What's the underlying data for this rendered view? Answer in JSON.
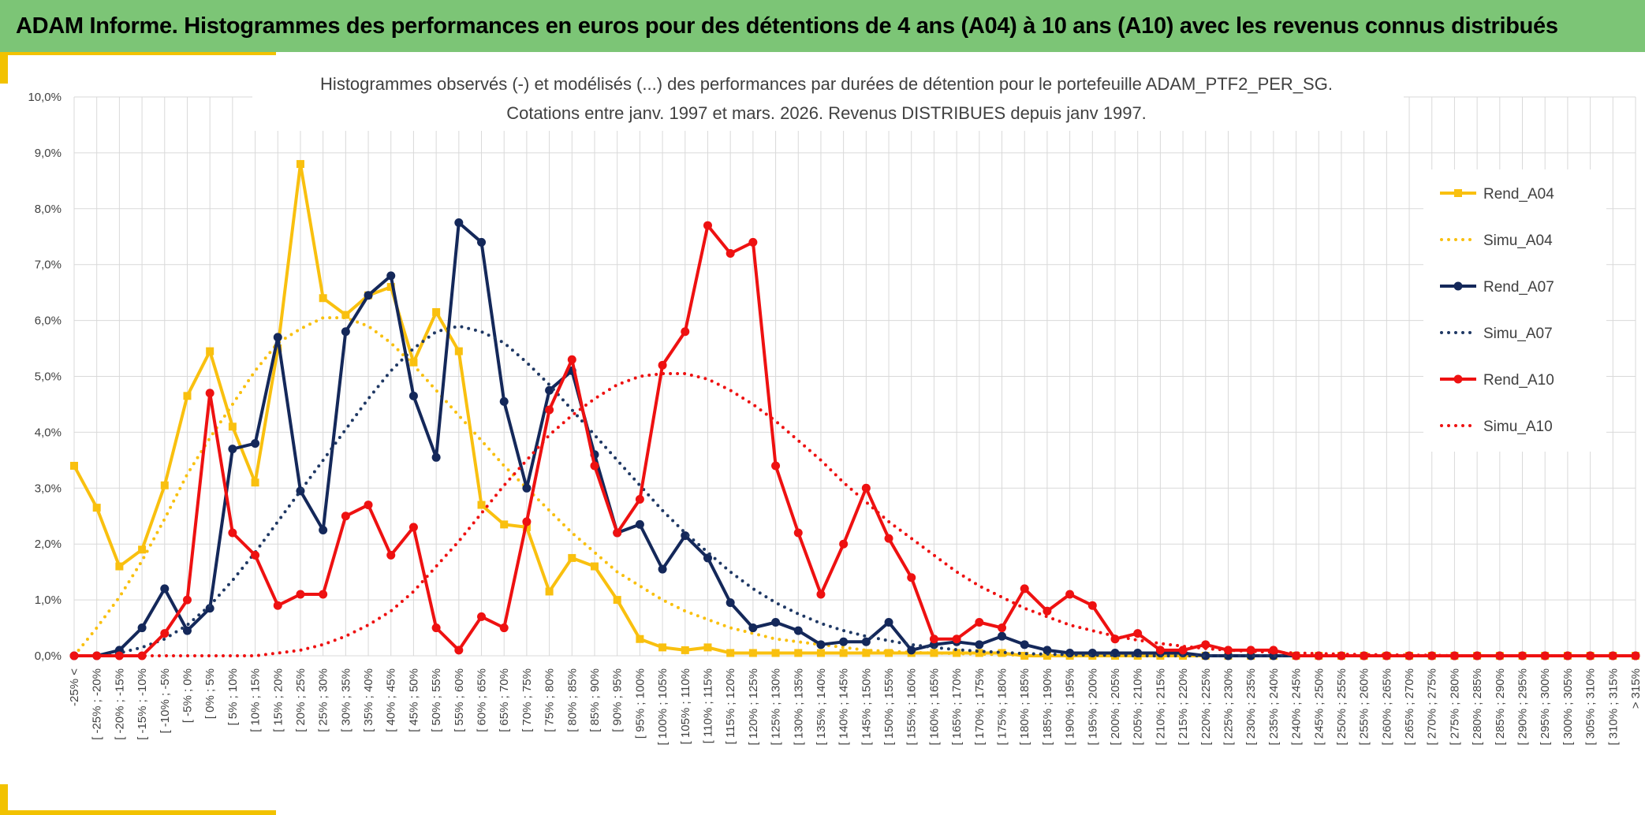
{
  "banner": {
    "title": "ADAM Informe. Histogrammes des performances en euros pour des détentions de 4 ans (A04) à 10 ans (A10) avec les revenus connus distribués"
  },
  "colors": {
    "banner_bg": "#7cc576",
    "accent": "#f2c200",
    "a04": "#f9c00f",
    "a07": "#14285a",
    "a10": "#ee1111",
    "grid": "#d9d9d9"
  },
  "chart_data": {
    "type": "line",
    "title": "Histogrammes observés (-) et modélisés (...) des performances par durées de détention pour le portefeuille ADAM_PTF2_PER_SG.",
    "subtitle": "Cotations entre janv. 1997 et mars. 2026. Revenus DISTRIBUES depuis janv 1997.",
    "xlabel": "",
    "ylabel": "",
    "ylim": [
      0,
      10
    ],
    "yticks": [
      "0,0%",
      "1,0%",
      "2,0%",
      "3,0%",
      "4,0%",
      "5,0%",
      "6,0%",
      "7,0%",
      "8,0%",
      "9,0%",
      "10,0%"
    ],
    "grid": true,
    "legend_position": "right",
    "categories": [
      "-25% <",
      "[ -25% ; -20%",
      "[ -20% ; -15%",
      "[ -15% ; -10%",
      "[ -10% ; -5%",
      "[ -5% ; 0%",
      "[ 0% ; 5%",
      "[ 5% ; 10%",
      "[ 10% ; 15%",
      "[ 15% ; 20%",
      "[ 20% ; 25%",
      "[ 25% ; 30%",
      "[ 30% ; 35%",
      "[ 35% ; 40%",
      "[ 40% ; 45%",
      "[ 45% ; 50%",
      "[ 50% ; 55%",
      "[ 55% ; 60%",
      "[ 60% ; 65%",
      "[ 65% ; 70%",
      "[ 70% ; 75%",
      "[ 75% ; 80%",
      "[ 80% ; 85%",
      "[ 85% ; 90%",
      "[ 90% ; 95%",
      "[ 95% ; 100%",
      "[ 100% ; 105%",
      "[ 105% ; 110%",
      "[ 110% ; 115%",
      "[ 115% ; 120%",
      "[ 120% ; 125%",
      "[ 125% ; 130%",
      "[ 130% ; 135%",
      "[ 135% ; 140%",
      "[ 140% ; 145%",
      "[ 145% ; 150%",
      "[ 150% ; 155%",
      "[ 155% ; 160%",
      "[ 160% ; 165%",
      "[ 165% ; 170%",
      "[ 170% ; 175%",
      "[ 175% ; 180%",
      "[ 180% ; 185%",
      "[ 185% ; 190%",
      "[ 190% ; 195%",
      "[ 195% ; 200%",
      "[ 200% ; 205%",
      "[ 205% ; 210%",
      "[ 210% ; 215%",
      "[ 215% ; 220%",
      "[ 220% ; 225%",
      "[ 225% ; 230%",
      "[ 230% ; 235%",
      "[ 235% ; 240%",
      "[ 240% ; 245%",
      "[ 245% ; 250%",
      "[ 250% ; 255%",
      "[ 255% ; 260%",
      "[ 260% ; 265%",
      "[ 265% ; 270%",
      "[ 270% ; 275%",
      "[ 275% ; 280%",
      "[ 280% ; 285%",
      "[ 285% ; 290%",
      "[ 290% ; 295%",
      "[ 295% ; 300%",
      "[ 300% ; 305%",
      "[ 305% ; 310%",
      "[ 310% ; 315%",
      "> 315%"
    ],
    "series": [
      {
        "name": "Rend_A04",
        "style": "solid",
        "marker": "square",
        "color": "#f9c00f",
        "values": [
          3.4,
          2.65,
          1.6,
          1.9,
          3.05,
          4.65,
          5.45,
          4.1,
          3.1,
          5.5,
          8.8,
          6.4,
          6.1,
          6.45,
          6.6,
          5.25,
          6.15,
          5.45,
          2.7,
          2.35,
          2.3,
          1.15,
          1.75,
          1.6,
          1.0,
          0.3,
          0.15,
          0.1,
          0.15,
          0.05,
          0.05,
          0.05,
          0.05,
          0.05,
          0.05,
          0.05,
          0.05,
          0.05,
          0.05,
          0.05,
          0.05,
          0.05,
          0.0,
          0.0,
          0.0,
          0.0,
          0.0,
          0.0,
          0.0,
          0.0,
          0.0,
          0.0,
          0.0,
          0.0,
          0.0,
          0.0,
          0.0,
          0.0,
          0.0,
          0.0,
          0.0,
          0.0,
          0.0,
          0.0,
          0.0,
          0.0,
          0.0,
          0.0,
          0.0,
          0.0
        ]
      },
      {
        "name": "Simu_A04",
        "style": "dotted",
        "marker": "none",
        "color": "#f9c00f",
        "values": [
          0.0,
          0.5,
          1.05,
          1.7,
          2.45,
          3.25,
          3.9,
          4.5,
          5.1,
          5.6,
          5.85,
          6.05,
          6.05,
          5.9,
          5.6,
          5.2,
          4.75,
          4.3,
          3.85,
          3.4,
          3.0,
          2.6,
          2.2,
          1.85,
          1.5,
          1.25,
          1.0,
          0.8,
          0.65,
          0.5,
          0.4,
          0.3,
          0.25,
          0.2,
          0.15,
          0.1,
          0.08,
          0.06,
          0.05,
          0.04,
          0.03,
          0.02,
          0.01,
          0.01,
          0.0,
          0.0,
          0.0,
          0.0,
          0.0,
          0.0,
          0.0,
          0.0,
          0.0,
          0.0,
          0.0,
          0.0,
          0.0,
          0.0,
          0.0,
          0.0,
          0.0,
          0.0,
          0.0,
          0.0,
          0.0,
          0.0,
          0.0,
          0.0,
          0.0,
          0.0
        ]
      },
      {
        "name": "Rend_A07",
        "style": "solid",
        "marker": "circle",
        "color": "#14285a",
        "values": [
          0.0,
          0.0,
          0.1,
          0.5,
          1.2,
          0.45,
          0.85,
          3.7,
          3.8,
          5.7,
          2.95,
          2.25,
          5.8,
          6.45,
          6.8,
          4.65,
          3.55,
          7.75,
          7.4,
          4.55,
          3.0,
          4.75,
          5.1,
          3.6,
          2.2,
          2.35,
          1.55,
          2.15,
          1.75,
          0.95,
          0.5,
          0.6,
          0.45,
          0.2,
          0.25,
          0.25,
          0.6,
          0.1,
          0.2,
          0.25,
          0.2,
          0.35,
          0.2,
          0.1,
          0.05,
          0.05,
          0.05,
          0.05,
          0.05,
          0.05,
          0.0,
          0.0,
          0.0,
          0.0,
          0.0,
          0.0,
          0.0,
          0.0,
          0.0,
          0.0,
          0.0,
          0.0,
          0.0,
          0.0,
          0.0,
          0.0,
          0.0,
          0.0,
          0.0,
          0.0
        ]
      },
      {
        "name": "Simu_A07",
        "style": "dotted",
        "marker": "none",
        "color": "#1f3864",
        "values": [
          0.0,
          0.0,
          0.05,
          0.15,
          0.3,
          0.55,
          0.9,
          1.35,
          1.85,
          2.4,
          2.95,
          3.5,
          4.05,
          4.6,
          5.1,
          5.5,
          5.8,
          5.9,
          5.8,
          5.6,
          5.25,
          4.85,
          4.4,
          3.95,
          3.5,
          3.05,
          2.6,
          2.2,
          1.85,
          1.5,
          1.2,
          0.95,
          0.75,
          0.58,
          0.45,
          0.35,
          0.27,
          0.2,
          0.15,
          0.11,
          0.08,
          0.06,
          0.04,
          0.03,
          0.02,
          0.01,
          0.01,
          0.0,
          0.0,
          0.0,
          0.0,
          0.0,
          0.0,
          0.0,
          0.0,
          0.0,
          0.0,
          0.0,
          0.0,
          0.0,
          0.0,
          0.0,
          0.0,
          0.0,
          0.0,
          0.0,
          0.0,
          0.0,
          0.0,
          0.0
        ]
      },
      {
        "name": "Rend_A10",
        "style": "solid",
        "marker": "circle",
        "color": "#ee1111",
        "values": [
          0.0,
          0.0,
          0.0,
          0.0,
          0.4,
          1.0,
          4.7,
          2.2,
          1.8,
          0.9,
          1.1,
          1.1,
          2.5,
          2.7,
          1.8,
          2.3,
          0.5,
          0.1,
          0.7,
          0.5,
          2.4,
          4.4,
          5.3,
          3.4,
          2.2,
          2.8,
          5.2,
          5.8,
          7.7,
          7.2,
          7.4,
          3.4,
          2.2,
          1.1,
          2.0,
          3.0,
          2.1,
          1.4,
          0.3,
          0.3,
          0.6,
          0.5,
          1.2,
          0.8,
          1.1,
          0.9,
          0.3,
          0.4,
          0.1,
          0.1,
          0.2,
          0.1,
          0.1,
          0.1,
          0.0,
          0.0,
          0.0,
          0.0,
          0.0,
          0.0,
          0.0,
          0.0,
          0.0,
          0.0,
          0.0,
          0.0,
          0.0,
          0.0,
          0.0,
          0.0
        ]
      },
      {
        "name": "Simu_A10",
        "style": "dotted",
        "marker": "none",
        "color": "#ee1111",
        "values": [
          0.0,
          0.0,
          0.0,
          0.0,
          0.0,
          0.0,
          0.0,
          0.0,
          0.0,
          0.05,
          0.1,
          0.2,
          0.35,
          0.55,
          0.8,
          1.15,
          1.6,
          2.05,
          2.55,
          3.05,
          3.5,
          3.95,
          4.3,
          4.6,
          4.85,
          5.0,
          5.05,
          5.05,
          4.95,
          4.75,
          4.5,
          4.2,
          3.85,
          3.5,
          3.1,
          2.75,
          2.4,
          2.1,
          1.8,
          1.5,
          1.25,
          1.05,
          0.85,
          0.7,
          0.55,
          0.45,
          0.35,
          0.28,
          0.22,
          0.17,
          0.13,
          0.1,
          0.08,
          0.06,
          0.05,
          0.04,
          0.03,
          0.02,
          0.02,
          0.01,
          0.01,
          0.0,
          0.0,
          0.0,
          0.0,
          0.0,
          0.0,
          0.0,
          0.0,
          0.0
        ]
      }
    ]
  }
}
